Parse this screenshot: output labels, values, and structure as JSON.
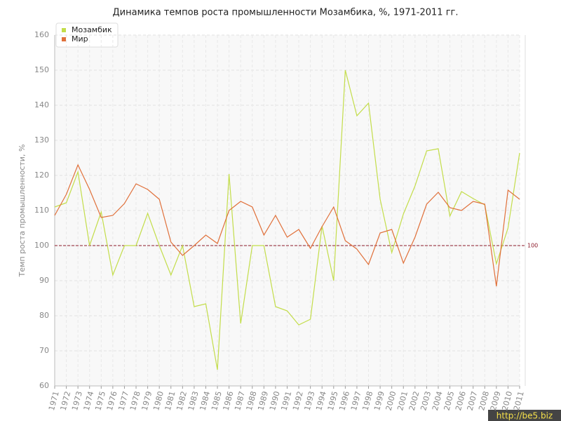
{
  "chart_data": {
    "type": "line",
    "title": "Динамика темпов роста промышленности Мозамбика, %, 1971-2011 гг.",
    "y_label": "Темп роста промышленности, %",
    "x": [
      1971,
      1972,
      1973,
      1974,
      1975,
      1976,
      1977,
      1978,
      1979,
      1980,
      1981,
      1982,
      1983,
      1984,
      1985,
      1986,
      1987,
      1988,
      1989,
      1990,
      1991,
      1992,
      1993,
      1994,
      1995,
      1996,
      1997,
      1998,
      1999,
      2000,
      2001,
      2002,
      2003,
      2004,
      2005,
      2006,
      2007,
      2008,
      2009,
      2010,
      2011
    ],
    "xlim": [
      1971,
      2011
    ],
    "ylim": [
      60,
      160
    ],
    "yticks": [
      60,
      70,
      80,
      90,
      100,
      110,
      120,
      130,
      140,
      150,
      160
    ],
    "grid": true,
    "legend": "top-left",
    "reference_line": {
      "value": 100,
      "label": "100",
      "color": "#8b1a2a"
    },
    "series": [
      {
        "name": "Мозамбик",
        "color": "#c3dd4a",
        "values": [
          111,
          112.2,
          121,
          100,
          109.6,
          91.6,
          100,
          100,
          109.2,
          100,
          91.6,
          100,
          82.6,
          83.4,
          64.6,
          120.4,
          77.8,
          100,
          100,
          82.6,
          81.4,
          77.4,
          79,
          105.6,
          90,
          150,
          137,
          140.6,
          113.2,
          98,
          109,
          117,
          127,
          127.6,
          108.4,
          115.4,
          113.4,
          111.6,
          94.8,
          105,
          126.4
        ]
      },
      {
        "name": "Мир",
        "color": "#e0703a",
        "values": [
          108.6,
          114.6,
          123,
          116,
          108,
          108.6,
          112,
          117.6,
          116,
          113.2,
          101,
          97.2,
          100,
          103,
          100.6,
          110,
          112.6,
          111,
          103,
          108.6,
          102.4,
          104.6,
          99.2,
          105.4,
          111,
          101.4,
          99,
          94.6,
          103.6,
          104.6,
          95,
          102.4,
          111.8,
          115.2,
          110.8,
          110,
          112.6,
          111.8,
          88.4,
          115.8,
          113.2
        ]
      }
    ],
    "watermark": "http://be5.biz"
  }
}
